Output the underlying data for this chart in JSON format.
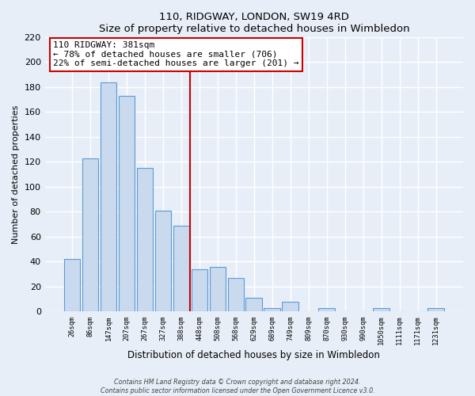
{
  "title": "110, RIDGWAY, LONDON, SW19 4RD",
  "subtitle": "Size of property relative to detached houses in Wimbledon",
  "xlabel": "Distribution of detached houses by size in Wimbledon",
  "ylabel": "Number of detached properties",
  "bar_labels": [
    "26sqm",
    "86sqm",
    "147sqm",
    "207sqm",
    "267sqm",
    "327sqm",
    "388sqm",
    "448sqm",
    "508sqm",
    "568sqm",
    "629sqm",
    "689sqm",
    "749sqm",
    "809sqm",
    "870sqm",
    "930sqm",
    "990sqm",
    "1050sqm",
    "1111sqm",
    "1171sqm",
    "1231sqm"
  ],
  "bar_values": [
    42,
    123,
    184,
    173,
    115,
    81,
    69,
    34,
    36,
    27,
    11,
    3,
    8,
    0,
    3,
    0,
    0,
    3,
    0,
    0,
    3
  ],
  "bar_facecolor": "#c9d9ee",
  "bar_edgecolor": "#5b9bd5",
  "vline_x_index": 6,
  "vline_color": "#cc0000",
  "ylim": [
    0,
    220
  ],
  "yticks": [
    0,
    20,
    40,
    60,
    80,
    100,
    120,
    140,
    160,
    180,
    200,
    220
  ],
  "annotation_line1": "110 RIDGWAY: 381sqm",
  "annotation_line2": "← 78% of detached houses are smaller (706)",
  "annotation_line3": "22% of semi-detached houses are larger (201) →",
  "annotation_box_color": "#ffffff",
  "annotation_box_edge": "#cc0000",
  "footer_line1": "Contains HM Land Registry data © Crown copyright and database right 2024.",
  "footer_line2": "Contains public sector information licensed under the Open Government Licence v3.0.",
  "background_color": "#e8eef8"
}
